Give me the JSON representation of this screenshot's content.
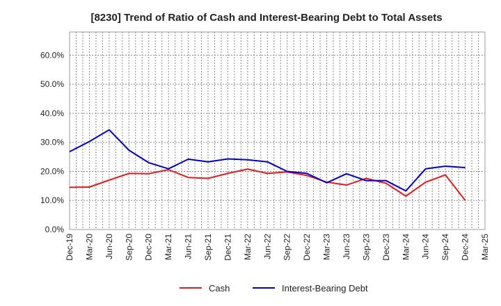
{
  "chart_data": {
    "type": "line",
    "title": "[8230]  Trend of Ratio of Cash and Interest-Bearing Debt to Total Assets",
    "xlabel": "",
    "ylabel": "",
    "x_tick_labels": [
      "Dec-19",
      "Mar-20",
      "Jun-20",
      "Sep-20",
      "Dec-20",
      "Mar-21",
      "Jun-21",
      "Sep-21",
      "Dec-21",
      "Mar-22",
      "Jun-22",
      "Sep-22",
      "Dec-22",
      "Mar-23",
      "Jun-23",
      "Sep-23",
      "Dec-23",
      "Mar-24",
      "Jun-24",
      "Sep-24",
      "Dec-24",
      "Mar-25"
    ],
    "y_tick_labels": [
      "0.0%",
      "10.0%",
      "20.0%",
      "30.0%",
      "40.0%",
      "50.0%",
      "60.0%"
    ],
    "ylim": [
      0,
      68
    ],
    "grid": true,
    "legend_position": "bottom",
    "categories": [
      "Dec-19",
      "Mar-20",
      "Jun-20",
      "Sep-20",
      "Dec-20",
      "Mar-21",
      "Jun-21",
      "Sep-21",
      "Dec-21",
      "Mar-22",
      "Jun-22",
      "Sep-22",
      "Dec-22",
      "Mar-23",
      "Jun-23",
      "Sep-23",
      "Dec-23",
      "Mar-24",
      "Jun-24",
      "Sep-24",
      "Dec-24"
    ],
    "series": [
      {
        "name": "Cash",
        "color": "#e31a1c",
        "values": [
          14.5,
          14.6,
          17.0,
          19.3,
          19.2,
          20.6,
          17.9,
          17.6,
          19.3,
          20.8,
          19.3,
          19.8,
          18.6,
          16.3,
          15.3,
          17.6,
          15.9,
          11.5,
          16.3,
          18.8,
          10.0
        ]
      },
      {
        "name": "Interest-Bearing Debt",
        "color": "#0000cc",
        "values": [
          26.8,
          30.3,
          34.3,
          27.3,
          23.0,
          20.9,
          24.2,
          23.3,
          24.3,
          24.0,
          23.3,
          20.0,
          19.3,
          16.1,
          19.2,
          16.8,
          16.8,
          13.3,
          20.9,
          21.8,
          21.3
        ]
      }
    ]
  }
}
